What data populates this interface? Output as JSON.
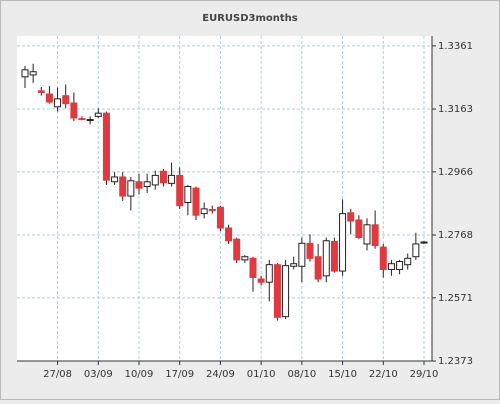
{
  "chart_data": {
    "type": "candlestick",
    "title": "EURUSD3months",
    "categories": [
      null,
      null,
      null,
      null,
      "27/08",
      null,
      null,
      null,
      null,
      "03/09",
      null,
      null,
      null,
      null,
      "10/09",
      null,
      null,
      null,
      null,
      "17/09",
      null,
      null,
      null,
      null,
      "24/09",
      null,
      null,
      null,
      null,
      "01/10",
      null,
      null,
      null,
      null,
      "08/10",
      null,
      null,
      null,
      null,
      "15/10",
      null,
      null,
      null,
      null,
      "22/10",
      null,
      null,
      null,
      null,
      "29/10"
    ],
    "open": [
      1.3264,
      1.327,
      1.322,
      1.321,
      1.317,
      1.3205,
      1.3182,
      1.3133,
      1.3128,
      1.314,
      1.315,
      1.2935,
      1.295,
      1.289,
      1.2935,
      1.292,
      1.2925,
      1.2968,
      1.293,
      1.2955,
      1.287,
      1.2915,
      1.2835,
      1.2848,
      1.2855,
      1.279,
      1.2755,
      1.269,
      1.2695,
      1.263,
      1.262,
      1.2675,
      1.2512,
      1.267,
      1.267,
      1.2742,
      1.27,
      1.264,
      1.2748,
      1.2655,
      1.2838,
      1.2815,
      1.274,
      1.28,
      1.273,
      1.266,
      1.266,
      1.2675,
      1.27,
      1.2744
    ],
    "high": [
      1.3298,
      1.3305,
      1.3232,
      1.3235,
      1.323,
      1.324,
      1.3215,
      1.314,
      1.314,
      1.3165,
      1.3155,
      1.2965,
      1.2965,
      1.295,
      1.296,
      1.296,
      1.297,
      1.2975,
      1.2995,
      1.298,
      1.2925,
      1.292,
      1.287,
      1.286,
      1.286,
      1.28,
      1.276,
      1.2705,
      1.27,
      1.264,
      1.269,
      1.268,
      1.269,
      1.27,
      1.276,
      1.277,
      1.274,
      1.276,
      1.276,
      1.288,
      1.285,
      1.283,
      1.282,
      1.2845,
      1.274,
      1.269,
      1.269,
      1.271,
      1.2775,
      1.275
    ],
    "low": [
      1.3229,
      1.3245,
      1.3205,
      1.318,
      1.3155,
      1.3165,
      1.3125,
      1.3128,
      1.3115,
      1.3135,
      1.2925,
      1.2925,
      1.2875,
      1.2845,
      1.2895,
      1.29,
      1.291,
      1.292,
      1.292,
      1.285,
      1.283,
      1.2815,
      1.282,
      1.2835,
      1.278,
      1.274,
      1.268,
      1.268,
      1.259,
      1.261,
      1.256,
      1.25,
      1.2505,
      1.266,
      1.262,
      1.2685,
      1.262,
      1.262,
      1.265,
      1.264,
      1.277,
      1.2755,
      1.272,
      1.2725,
      1.2635,
      1.264,
      1.2645,
      1.266,
      1.269,
      1.274
    ],
    "close": [
      1.3286,
      1.328,
      1.3215,
      1.3185,
      1.3195,
      1.318,
      1.3135,
      1.3132,
      1.313,
      1.315,
      1.294,
      1.295,
      1.289,
      1.2938,
      1.2915,
      1.2935,
      1.2955,
      1.2932,
      1.2955,
      1.286,
      1.292,
      1.283,
      1.285,
      1.2845,
      1.279,
      1.275,
      1.269,
      1.27,
      1.2635,
      1.262,
      1.2675,
      1.251,
      1.2672,
      1.2678,
      1.2742,
      1.2695,
      1.263,
      1.275,
      1.2655,
      1.2835,
      1.2812,
      1.276,
      1.28,
      1.2735,
      1.266,
      1.2678,
      1.2685,
      1.2695,
      1.274,
      1.2746
    ],
    "up_color": "#ffffff",
    "down_color": "#e0393e",
    "ylim": [
      1.2373,
      1.3392
    ],
    "yticks": [
      1.2373,
      1.2571,
      1.2768,
      1.2966,
      1.3163,
      1.3361
    ],
    "grid": true
  }
}
